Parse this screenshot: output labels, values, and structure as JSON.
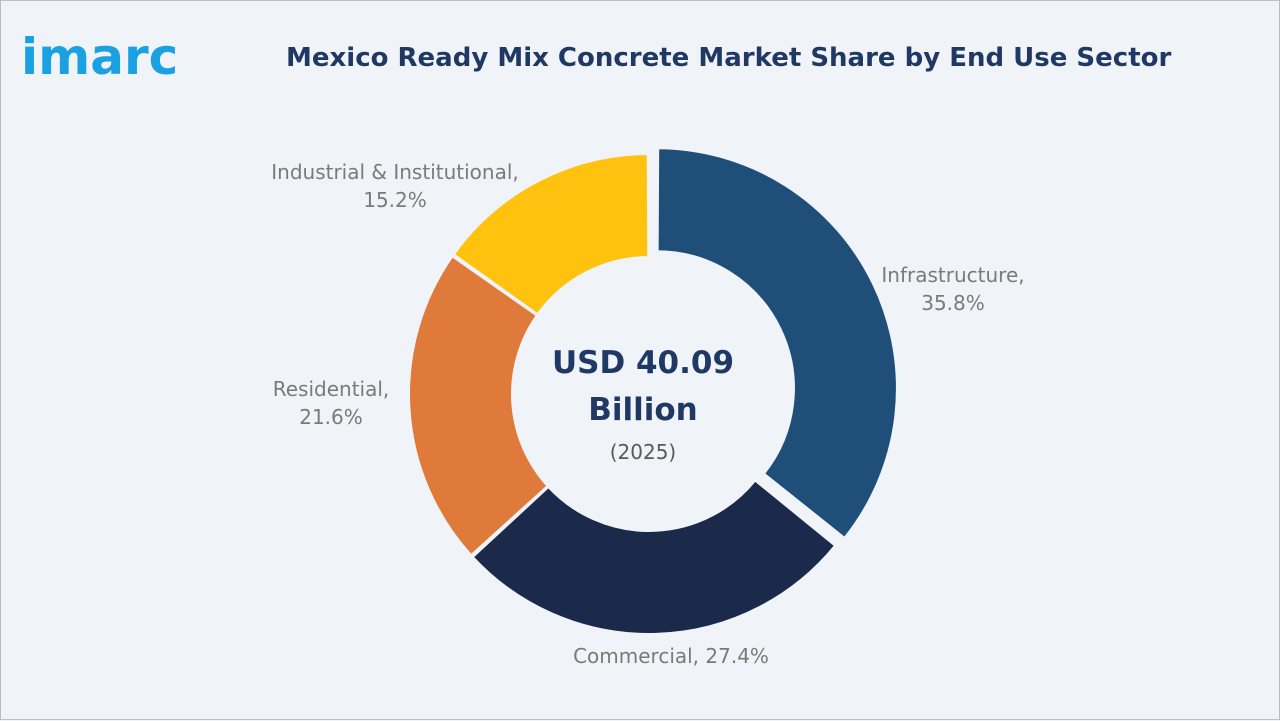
{
  "logo": {
    "text": "imarc"
  },
  "colors": {
    "background": "#f0f3f8",
    "title": "#1f3864",
    "logo": "#1aa1e1",
    "label": "#7a7a7a"
  },
  "chart_data": {
    "type": "pie",
    "variant": "donut",
    "title": "Mexico Ready Mix Concrete Market Share by End Use Sector",
    "center": {
      "value": "USD 40.09 Billion",
      "year": "(2025)"
    },
    "unit": "%",
    "slices": [
      {
        "name": "Infrastructure",
        "value": 35.8,
        "color": "#1f4e79",
        "label_line1": "Infrastructure,",
        "label_line2": "35.8%"
      },
      {
        "name": "Commercial",
        "value": 27.4,
        "color": "#1b2a4a",
        "label_line1": "Commercial, 27.4%",
        "label_line2": ""
      },
      {
        "name": "Residential",
        "value": 21.6,
        "color": "#e07a3a",
        "label_line1": "Residential,",
        "label_line2": "21.6%"
      },
      {
        "name": "Industrial & Institutional",
        "value": 15.2,
        "color": "#ffc20e",
        "label_line1": "Industrial & Institutional,",
        "label_line2": "15.2%"
      }
    ]
  }
}
